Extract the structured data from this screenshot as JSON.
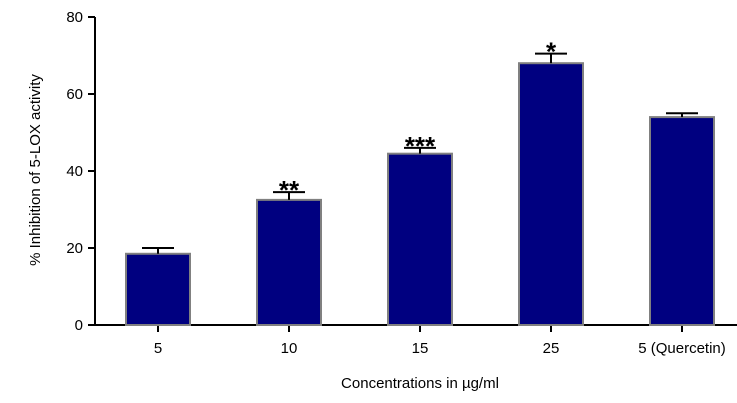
{
  "chart_data": {
    "type": "bar",
    "title": "",
    "xlabel": "Concentrations in µg/ml",
    "ylabel": "% Inhibition of 5-LOX activity",
    "ylim": [
      0,
      80
    ],
    "yticks": [
      0,
      20,
      40,
      60,
      80
    ],
    "grid": false,
    "legend": "none",
    "categories": [
      "5",
      "10",
      "15",
      "25",
      "5 (Quercetin)"
    ],
    "values": [
      18.5,
      32.5,
      44.5,
      68,
      54
    ],
    "error": [
      1.5,
      2,
      1.5,
      2.5,
      1
    ],
    "significance": [
      "",
      "**",
      "***",
      "*",
      ""
    ],
    "colors": {
      "bar_fill": "#000080",
      "bar_edge": "#808080",
      "axis": "#000000"
    }
  }
}
